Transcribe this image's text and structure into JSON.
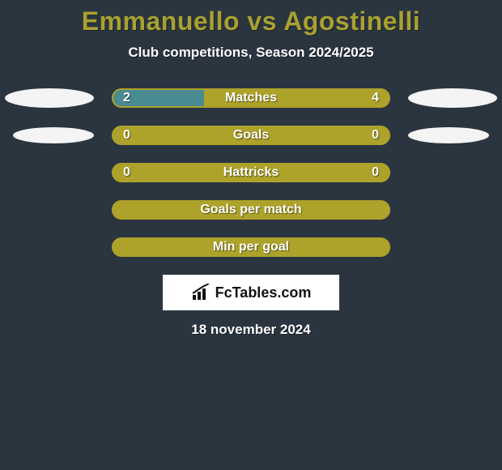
{
  "title": "Emmanuello vs Agostinelli",
  "title_color": "#a8a131",
  "subtitle": "Club competitions, Season 2024/2025",
  "background_color": "#2b3540",
  "ellipse_color": "#ffffff",
  "text_color": "#ffffff",
  "bars": [
    {
      "label": "Matches",
      "left_value": "2",
      "right_value": "4",
      "left_pct": 33,
      "right_pct": 67,
      "left_color": "#4a8a91",
      "right_color": "#ada22a",
      "border_color": "#ada22a",
      "show_ellipses": true,
      "ellipse_small": false
    },
    {
      "label": "Goals",
      "left_value": "0",
      "right_value": "0",
      "left_pct": 0,
      "right_pct": 100,
      "left_color": "#4a8a91",
      "right_color": "#ada22a",
      "border_color": "#ada22a",
      "show_ellipses": true,
      "ellipse_small": true
    },
    {
      "label": "Hattricks",
      "left_value": "0",
      "right_value": "0",
      "left_pct": 0,
      "right_pct": 100,
      "left_color": "#4a8a91",
      "right_color": "#ada22a",
      "border_color": "#ada22a",
      "show_ellipses": false
    },
    {
      "label": "Goals per match",
      "left_value": "",
      "right_value": "",
      "left_pct": 0,
      "right_pct": 100,
      "left_color": "#4a8a91",
      "right_color": "#ada22a",
      "border_color": "#ada22a",
      "show_ellipses": false
    },
    {
      "label": "Min per goal",
      "left_value": "",
      "right_value": "",
      "left_pct": 0,
      "right_pct": 100,
      "left_color": "#4a8a91",
      "right_color": "#ada22a",
      "border_color": "#ada22a",
      "show_ellipses": false
    }
  ],
  "logo_text": "FcTables.com",
  "date": "18 november 2024"
}
